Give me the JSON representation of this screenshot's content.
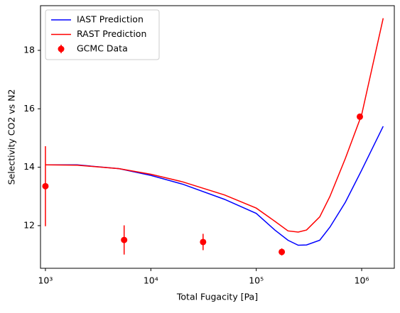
{
  "chart_data": {
    "type": "line",
    "xlabel": "Total Fugacity [Pa]",
    "ylabel": "Selectivity CO2 vs N2",
    "xscale": "log",
    "xlim": [
      898,
      2040000
    ],
    "ylim": [
      10.54,
      19.53
    ],
    "xticks": [
      {
        "value": 1000,
        "label": "10³"
      },
      {
        "value": 10000,
        "label": "10⁴"
      },
      {
        "value": 100000,
        "label": "10⁵"
      },
      {
        "value": 1000000,
        "label": "10⁶"
      }
    ],
    "yticks": [
      12,
      14,
      16,
      18
    ],
    "legend": "upper left",
    "x": [
      1000,
      2000,
      5000,
      10000,
      20000,
      50000,
      100000,
      150000,
      200000,
      250000,
      300000,
      400000,
      500000,
      700000,
      1000000,
      1600000
    ],
    "series": [
      {
        "name": "IAST Prediction",
        "color": "#0000ff",
        "values": [
          14.08,
          14.08,
          13.95,
          13.72,
          13.42,
          12.9,
          12.42,
          11.85,
          11.5,
          11.33,
          11.34,
          11.5,
          11.95,
          12.8,
          13.9,
          15.4
        ]
      },
      {
        "name": "RAST Prediction",
        "color": "#ff0000",
        "values": [
          14.08,
          14.07,
          13.95,
          13.76,
          13.5,
          13.05,
          12.6,
          12.15,
          11.82,
          11.78,
          11.85,
          12.3,
          13.0,
          14.3,
          15.8,
          19.1
        ]
      }
    ],
    "scatter": {
      "name": "GCMC Data",
      "color": "#ff0000",
      "x": [
        1000,
        5580,
        31300,
        174600,
        961000
      ],
      "values": [
        13.35,
        11.51,
        11.44,
        11.1,
        15.73
      ],
      "errors": [
        1.37,
        0.5,
        0.28,
        0.12,
        0.1
      ]
    }
  }
}
